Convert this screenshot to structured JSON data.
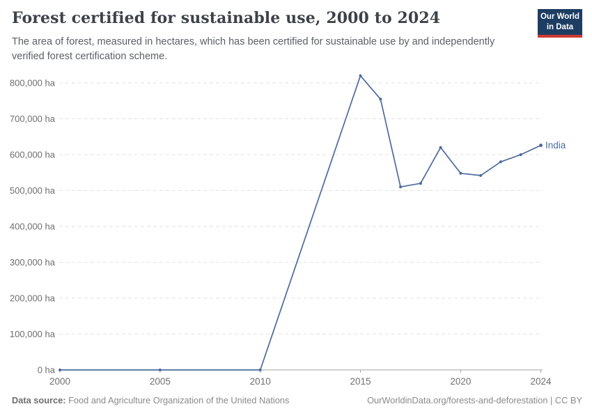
{
  "header": {
    "title": "Forest certified for sustainable use, 2000 to 2024",
    "subtitle": "The area of forest, measured in hectares, which has been certified for sustainable use by and independently verified forest certification scheme.",
    "logo": {
      "line1": "Our World",
      "line2": "in Data"
    }
  },
  "footer": {
    "datasource_label": "Data source:",
    "datasource_value": "Food and Agriculture Organization of the United Nations",
    "link_text": "OurWorldinData.org/forests-and-deforestation | CC BY"
  },
  "colors": {
    "series_blue": "#4c6a9c",
    "logo_navy": "#1d3d63",
    "logo_red": "#cf3b31",
    "grid_gray": "#e2e2e2",
    "axis_gray": "#a3a3a3"
  },
  "chart_data": {
    "type": "line",
    "title": "Forest certified for sustainable use, 2000 to 2024",
    "xlabel": "",
    "ylabel": "",
    "y_unit_suffix": " ha",
    "xlim": [
      2000,
      2024
    ],
    "ylim": [
      0,
      820000
    ],
    "grid": "horizontal-dashed",
    "legend_position": "end-of-line-label",
    "x_ticks": [
      2000,
      2005,
      2010,
      2015,
      2020,
      2024
    ],
    "y_ticks": [
      0,
      100000,
      200000,
      300000,
      400000,
      500000,
      600000,
      700000,
      800000
    ],
    "y_tick_labels": [
      "0 ha",
      "100,000 ha",
      "200,000 ha",
      "300,000 ha",
      "400,000 ha",
      "500,000 ha",
      "600,000 ha",
      "700,000 ha",
      "800,000 ha"
    ],
    "series": [
      {
        "name": "India",
        "color": "#4c6a9c",
        "x": [
          2000,
          2005,
          2010,
          2015,
          2016,
          2017,
          2018,
          2019,
          2020,
          2021,
          2022,
          2023,
          2024
        ],
        "values": [
          0,
          0,
          0,
          820000,
          755000,
          510000,
          520000,
          620000,
          548000,
          542000,
          580000,
          600000,
          626000
        ]
      }
    ]
  }
}
